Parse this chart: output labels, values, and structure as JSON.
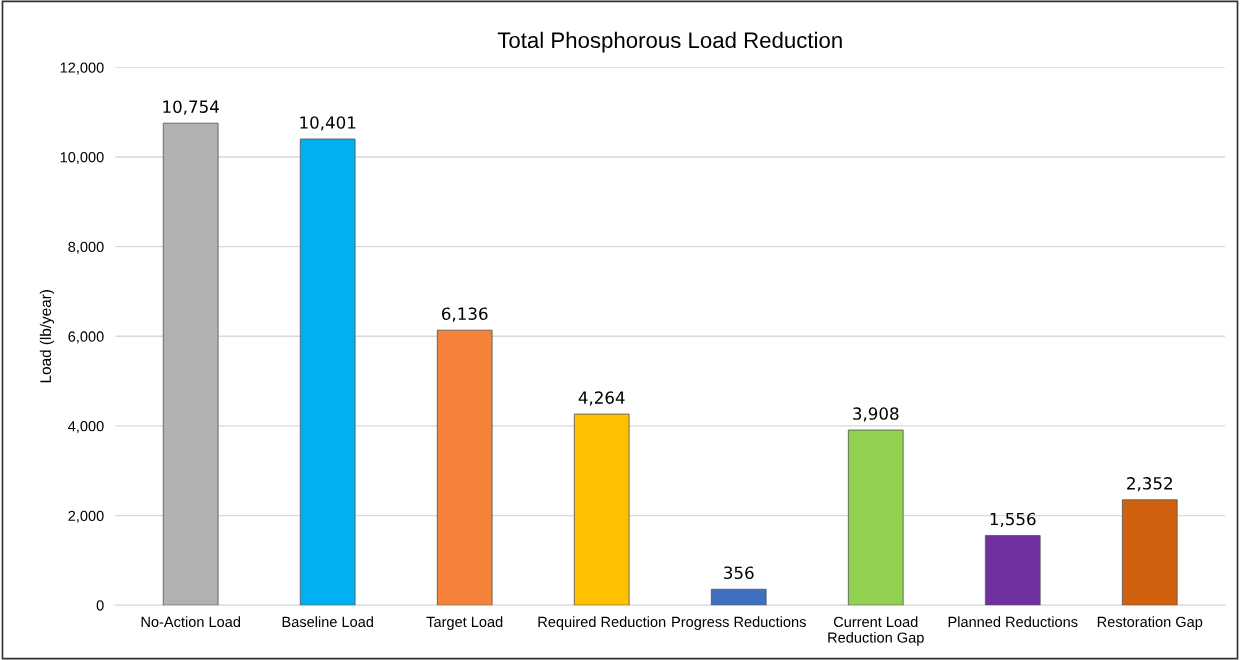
{
  "chart_data": {
    "type": "bar",
    "title": "Total Phosphorous Load Reduction",
    "ylabel": "Load (lb/year)",
    "categories": [
      "No-Action Load",
      "Baseline Load",
      "Target Load",
      "Required Reduction",
      "Progress Reductions",
      "Current Load\nReduction Gap",
      "Planned Reductions",
      "Restoration Gap"
    ],
    "values": [
      10754,
      10401,
      6136,
      4264,
      356,
      3908,
      1556,
      2352
    ],
    "value_labels": [
      "10,754",
      "10,401",
      "6,136",
      "4,264",
      "356",
      "3,908",
      "1,556",
      "2,352"
    ],
    "colors": [
      "#b3b1af",
      "#00b0f0",
      "#f5823a",
      "#ffc000",
      "#3f6fc0",
      "#92d050",
      "#7030a0",
      "#d0620f"
    ],
    "ylim": [
      0,
      12000
    ],
    "yticks": [
      0,
      {
        "value": 2000,
        "label": "2,000"
      },
      {
        "value": 4000,
        "label": "4,000"
      },
      {
        "value": 6000,
        "label": "6,000"
      },
      {
        "value": 8000,
        "label": "8,000"
      },
      {
        "value": 10000,
        "label": "10,000"
      },
      {
        "value": 12000,
        "label": "12,000"
      }
    ],
    "grid": "y"
  }
}
